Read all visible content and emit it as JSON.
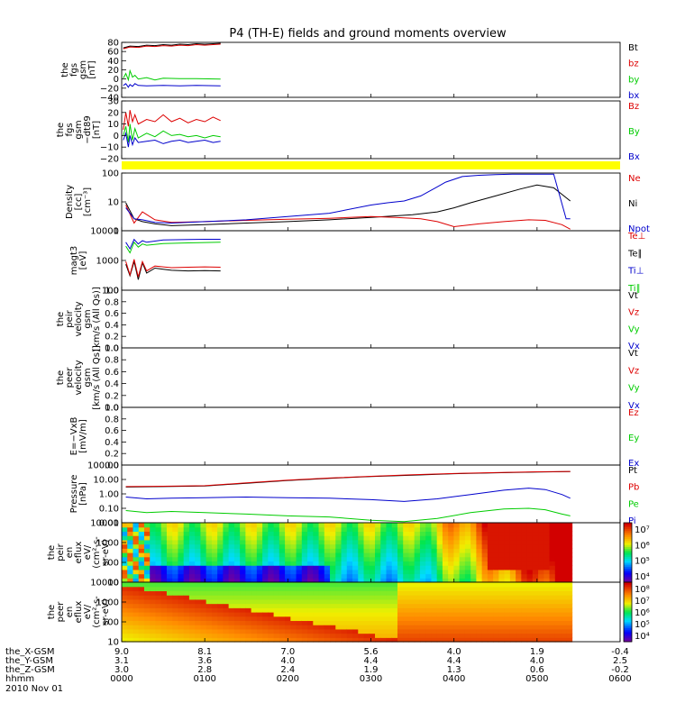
{
  "title": "P4 (TH-E) fields and ground moments overview",
  "colors": {
    "black": "#000000",
    "red": "#dd0000",
    "green": "#00cc00",
    "blue": "#0000cc",
    "yellow": "#ffff00"
  },
  "time_axis": {
    "range_hours": [
      0,
      6
    ],
    "rows": [
      {
        "label": "the_X-GSM",
        "values": [
          "9.0",
          "8.1",
          "7.0",
          "5.6",
          "4.0",
          "1.9",
          "-0.4"
        ]
      },
      {
        "label": "the_Y-GSM",
        "values": [
          "3.1",
          "3.6",
          "4.0",
          "4.4",
          "4.4",
          "4.0",
          "2.5"
        ]
      },
      {
        "label": "the_Z-GSM",
        "values": [
          "3.0",
          "2.8",
          "2.4",
          "1.9",
          "1.3",
          "0.6",
          "-0.2"
        ]
      },
      {
        "label": "hhmm",
        "values": [
          "0000",
          "0100",
          "0200",
          "0300",
          "0400",
          "0500",
          "0600"
        ]
      }
    ],
    "date": "2010 Nov 01"
  },
  "chart_data": [
    {
      "type": "line",
      "panel": "fgs_gsm",
      "ylabel": [
        "the",
        "fgs",
        "gsm",
        "[nT]"
      ],
      "ylim": [
        -40,
        80
      ],
      "yticks": [
        "80",
        "60",
        "40",
        "20",
        "0",
        "−20",
        "−40"
      ],
      "legend": [
        {
          "text": "Bt",
          "color": "black"
        },
        {
          "text": "bz",
          "color": "red"
        },
        {
          "text": "by",
          "color": "green"
        },
        {
          "text": "bx",
          "color": "blue"
        }
      ],
      "series": [
        {
          "color": "black",
          "x": [
            0.02,
            0.1,
            0.2,
            0.3,
            0.4,
            0.5,
            0.6,
            0.7,
            0.8,
            0.9,
            1.0,
            1.1,
            1.19
          ],
          "y": [
            68,
            72,
            71,
            74,
            73,
            75,
            74,
            76,
            75,
            77,
            76,
            77,
            78
          ]
        },
        {
          "color": "red",
          "x": [
            0.02,
            0.1,
            0.2,
            0.3,
            0.4,
            0.5,
            0.6,
            0.7,
            0.8,
            0.9,
            1.0,
            1.1,
            1.19
          ],
          "y": [
            66,
            70,
            69,
            72,
            71,
            73,
            72,
            74,
            73,
            75,
            74,
            75,
            76
          ]
        },
        {
          "color": "green",
          "x": [
            0.02,
            0.05,
            0.08,
            0.1,
            0.13,
            0.16,
            0.2,
            0.3,
            0.4,
            0.5,
            0.7,
            0.9,
            1.19
          ],
          "y": [
            2,
            12,
            -2,
            18,
            4,
            8,
            0,
            3,
            -2,
            2,
            1,
            1,
            0
          ]
        },
        {
          "color": "blue",
          "x": [
            0.02,
            0.05,
            0.08,
            0.1,
            0.13,
            0.16,
            0.2,
            0.3,
            0.5,
            0.7,
            0.9,
            1.19
          ],
          "y": [
            -14,
            -10,
            -18,
            -12,
            -16,
            -10,
            -14,
            -15,
            -14,
            -15,
            -14,
            -15
          ]
        }
      ]
    },
    {
      "type": "line",
      "panel": "fgs_gsm_dt89",
      "ylabel": [
        "the",
        "fgs",
        "gsm",
        "−dt89",
        "[nT]"
      ],
      "ylim": [
        -20,
        30
      ],
      "yticks": [
        "30",
        "20",
        "10",
        "0",
        "−10",
        "−20"
      ],
      "legend": [
        {
          "text": "Bz",
          "color": "red"
        },
        {
          "text": "By",
          "color": "green"
        },
        {
          "text": "Bx",
          "color": "blue"
        }
      ],
      "series": [
        {
          "color": "red",
          "x": [
            0.02,
            0.05,
            0.08,
            0.1,
            0.13,
            0.16,
            0.2,
            0.3,
            0.4,
            0.5,
            0.6,
            0.7,
            0.8,
            0.9,
            1.0,
            1.1,
            1.19
          ],
          "y": [
            5,
            20,
            8,
            22,
            12,
            18,
            10,
            14,
            12,
            18,
            12,
            15,
            11,
            14,
            12,
            16,
            13
          ]
        },
        {
          "color": "green",
          "x": [
            0.02,
            0.05,
            0.08,
            0.1,
            0.13,
            0.16,
            0.2,
            0.3,
            0.4,
            0.5,
            0.6,
            0.7,
            0.8,
            0.9,
            1.0,
            1.1,
            1.19
          ],
          "y": [
            0,
            8,
            -6,
            10,
            -4,
            6,
            -2,
            2,
            -1,
            4,
            0,
            1,
            -1,
            0,
            -2,
            0,
            -1
          ]
        },
        {
          "color": "blue",
          "x": [
            0.02,
            0.05,
            0.08,
            0.1,
            0.13,
            0.16,
            0.2,
            0.3,
            0.4,
            0.5,
            0.6,
            0.7,
            0.8,
            0.9,
            1.0,
            1.1,
            1.19
          ],
          "y": [
            -4,
            2,
            -10,
            0,
            -8,
            -2,
            -6,
            -5,
            -4,
            -7,
            -5,
            -4,
            -6,
            -5,
            -4,
            -6,
            -5
          ]
        }
      ]
    },
    {
      "type": "line",
      "panel": "density",
      "yscale": "log",
      "ylabel": [
        "Density",
        "[cc]",
        "[cm⁻³]"
      ],
      "ylim": [
        0.6,
        200
      ],
      "yticks": [
        "100",
        "10",
        "1"
      ],
      "legend": [
        {
          "text": "Ne",
          "color": "red"
        },
        {
          "text": "Ni",
          "color": "black"
        },
        {
          "text": "Npot",
          "color": "blue"
        }
      ],
      "series": [
        {
          "color": "black",
          "x": [
            0.05,
            0.15,
            0.25,
            0.4,
            0.6,
            1,
            1.5,
            2,
            2.5,
            3,
            3.5,
            3.8,
            4.0,
            4.2,
            4.5,
            4.8,
            5.0,
            5.2,
            5.4
          ],
          "y": [
            10,
            2,
            1.5,
            1.2,
            1.0,
            1.1,
            1.3,
            1.5,
            1.8,
            2.3,
            3,
            4,
            6,
            10,
            20,
            40,
            60,
            45,
            12
          ]
        },
        {
          "color": "red",
          "x": [
            0.05,
            0.15,
            0.25,
            0.4,
            0.6,
            1,
            1.5,
            2,
            2.5,
            3,
            3.3,
            3.6,
            3.8,
            4.0,
            4.3,
            4.6,
            4.9,
            5.1,
            5.3,
            5.4
          ],
          "y": [
            8,
            1.3,
            4,
            1.8,
            1.4,
            1.5,
            1.7,
            1.9,
            2.1,
            2.5,
            2.3,
            2.0,
            1.5,
            0.9,
            1.2,
            1.5,
            1.8,
            1.7,
            1.1,
            0.7
          ]
        },
        {
          "color": "blue",
          "x": [
            0.05,
            0.15,
            0.25,
            0.4,
            0.6,
            1,
            1.5,
            2,
            2.5,
            3,
            3.2,
            3.4,
            3.6,
            3.8,
            3.9,
            4.1,
            4.3,
            4.5,
            4.7,
            4.8,
            5.2,
            5.35,
            5.4
          ],
          "y": [
            6,
            2,
            1.8,
            1.4,
            1.3,
            1.5,
            1.8,
            2.5,
            3.5,
            8,
            10,
            12,
            20,
            50,
            80,
            140,
            160,
            170,
            180,
            180,
            180,
            2,
            2
          ]
        }
      ]
    },
    {
      "type": "line",
      "panel": "temperature",
      "yscale": "log",
      "ylabel": [
        "magt3",
        "[eV]"
      ],
      "ylim": [
        20,
        10000
      ],
      "yticks": [
        "10000",
        "1000",
        "100"
      ],
      "legend": [
        {
          "text": "Te⊥",
          "color": "red"
        },
        {
          "text": "Te∥",
          "color": "black"
        },
        {
          "text": "Ti⊥",
          "color": "blue"
        },
        {
          "text": "Ti∥",
          "color": "green"
        }
      ],
      "series": [
        {
          "color": "black",
          "x": [
            0.05,
            0.1,
            0.15,
            0.2,
            0.25,
            0.3,
            0.4,
            0.5,
            0.6,
            0.8,
            1.0,
            1.19
          ],
          "y": [
            300,
            90,
            400,
            60,
            350,
            120,
            200,
            180,
            160,
            150,
            155,
            150
          ]
        },
        {
          "color": "red",
          "x": [
            0.05,
            0.1,
            0.15,
            0.2,
            0.25,
            0.3,
            0.4,
            0.5,
            0.6,
            0.8,
            1.0,
            1.19
          ],
          "y": [
            400,
            100,
            500,
            80,
            400,
            150,
            250,
            230,
            210,
            220,
            230,
            220
          ]
        },
        {
          "color": "blue",
          "x": [
            0.05,
            0.1,
            0.15,
            0.2,
            0.25,
            0.3,
            0.5,
            0.8,
            1.0,
            1.19
          ],
          "y": [
            3000,
            1500,
            4000,
            2500,
            3500,
            3000,
            3800,
            4000,
            4100,
            4100
          ]
        },
        {
          "color": "green",
          "x": [
            0.05,
            0.1,
            0.15,
            0.2,
            0.25,
            0.3,
            0.5,
            0.8,
            1.0,
            1.19
          ],
          "y": [
            2000,
            1000,
            3000,
            1800,
            2500,
            2200,
            2600,
            2800,
            2900,
            3000
          ]
        }
      ]
    },
    {
      "type": "line",
      "panel": "peir_velocity",
      "ylabel": [
        "the",
        "peir",
        "velocity",
        "gsm",
        "[km/s (All Qs)]"
      ],
      "ylim": [
        0,
        1
      ],
      "yticks": [
        "1.0",
        "0.8",
        "0.6",
        "0.4",
        "0.2",
        "0.0"
      ],
      "legend": [
        {
          "text": "Vt",
          "color": "black"
        },
        {
          "text": "Vz",
          "color": "red"
        },
        {
          "text": "Vy",
          "color": "green"
        },
        {
          "text": "Vx",
          "color": "blue"
        }
      ],
      "series": []
    },
    {
      "type": "line",
      "panel": "peer_velocity",
      "ylabel": [
        "the",
        "peer",
        "velocity",
        "gsm",
        "[km/s (All Qs)]"
      ],
      "ylim": [
        0,
        1
      ],
      "yticks": [
        "1.0",
        "0.8",
        "0.6",
        "0.4",
        "0.2",
        "0.0"
      ],
      "legend": [
        {
          "text": "Vt",
          "color": "black"
        },
        {
          "text": "Vz",
          "color": "red"
        },
        {
          "text": "Vy",
          "color": "green"
        },
        {
          "text": "Vx",
          "color": "blue"
        }
      ],
      "series": []
    },
    {
      "type": "line",
      "panel": "efield",
      "ylabel": [
        "E=−VxB",
        "[mV/m]"
      ],
      "ylim": [
        0,
        1
      ],
      "yticks": [
        "1.0",
        "0.8",
        "0.6",
        "0.4",
        "0.2",
        "0.0"
      ],
      "legend": [
        {
          "text": "Ez",
          "color": "red"
        },
        {
          "text": "Ey",
          "color": "green"
        },
        {
          "text": "Ex",
          "color": "blue"
        }
      ],
      "series": []
    },
    {
      "type": "line",
      "panel": "pressure",
      "yscale": "log",
      "ylabel": [
        "Pressure",
        "[nPa]"
      ],
      "ylim": [
        0.01,
        100
      ],
      "yticks": [
        "100.00",
        "10.00",
        "1.00",
        "0.10",
        "0.01"
      ],
      "legend": [
        {
          "text": "Pt",
          "color": "black"
        },
        {
          "text": "Pb",
          "color": "red"
        },
        {
          "text": "Pe",
          "color": "green"
        },
        {
          "text": "Pi",
          "color": "blue"
        }
      ],
      "series": [
        {
          "color": "black",
          "x": [
            0.05,
            0.5,
            1,
            1.5,
            2,
            2.5,
            3,
            3.5,
            4,
            4.5,
            5,
            5.4
          ],
          "y": [
            3.0,
            3.2,
            3.5,
            5.5,
            8.5,
            12,
            16,
            20,
            25,
            29,
            33,
            35
          ]
        },
        {
          "color": "red",
          "x": [
            0.05,
            0.5,
            1,
            1.5,
            2,
            2.5,
            3,
            3.5,
            4,
            4.5,
            5,
            5.4
          ],
          "y": [
            3.2,
            3.4,
            3.7,
            5.8,
            9,
            12.5,
            16.5,
            21,
            26,
            30,
            34,
            36
          ]
        },
        {
          "color": "blue",
          "x": [
            0.05,
            0.3,
            0.6,
            1,
            1.5,
            2,
            2.5,
            3,
            3.4,
            3.8,
            4.2,
            4.6,
            4.9,
            5.1,
            5.3,
            5.4
          ],
          "y": [
            0.6,
            0.45,
            0.5,
            0.55,
            0.6,
            0.55,
            0.5,
            0.4,
            0.3,
            0.45,
            0.9,
            1.8,
            2.5,
            2.0,
            0.9,
            0.5
          ]
        },
        {
          "color": "green",
          "x": [
            0.05,
            0.3,
            0.6,
            1,
            1.5,
            2,
            2.5,
            3,
            3.4,
            3.8,
            4.2,
            4.6,
            4.9,
            5.1,
            5.3,
            5.4
          ],
          "y": [
            0.07,
            0.05,
            0.06,
            0.05,
            0.04,
            0.03,
            0.025,
            0.015,
            0.012,
            0.02,
            0.05,
            0.09,
            0.1,
            0.08,
            0.04,
            0.03
          ]
        }
      ]
    },
    {
      "type": "heatmap",
      "panel": "peir_eflux",
      "ylabel": [
        "the",
        "peir",
        "en",
        "eflux",
        "eV/",
        "(cm²-s-",
        "sr-eV)"
      ],
      "yscale": "log",
      "ylim": [
        7,
        20000
      ],
      "yticks": [
        "10000",
        "1000",
        "100",
        "10"
      ],
      "colorbar": {
        "ticks": [
          "10⁷",
          "10⁶",
          "10⁵",
          "10⁴"
        ],
        "range_log10": [
          3.5,
          7
        ]
      }
    },
    {
      "type": "heatmap",
      "panel": "peer_eflux",
      "ylabel": [
        "the",
        "peer",
        "en",
        "eflux",
        "eV/",
        "(cm²-s-",
        "sr-eV)"
      ],
      "yscale": "log",
      "ylim": [
        7,
        20000
      ],
      "yticks": [
        "10000",
        "1000",
        "100",
        "10"
      ],
      "colorbar": {
        "ticks": [
          "10⁸",
          "10⁷",
          "10⁶",
          "10⁵",
          "10⁴"
        ],
        "range_log10": [
          3.5,
          8.5
        ]
      }
    }
  ]
}
